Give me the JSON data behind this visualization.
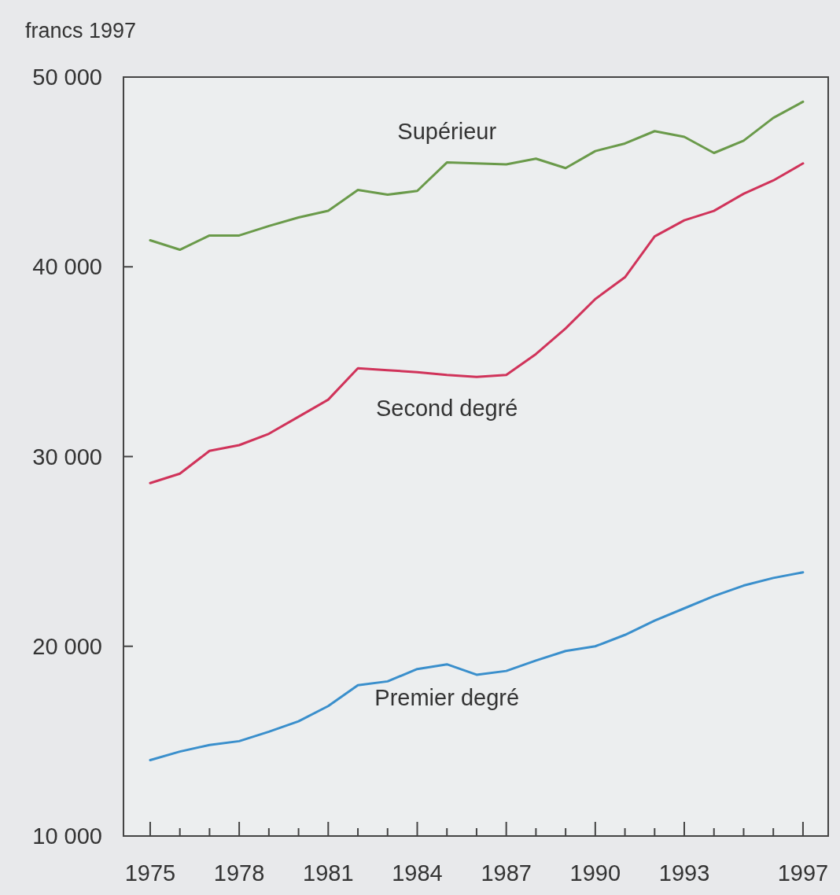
{
  "chart_data": {
    "type": "line",
    "ylabel": "francs 1997",
    "x": [
      1975,
      1976,
      1977,
      1978,
      1979,
      1980,
      1981,
      1982,
      1983,
      1984,
      1985,
      1986,
      1987,
      1988,
      1989,
      1990,
      1991,
      1992,
      1993,
      1994,
      1995,
      1996,
      1997
    ],
    "xlim": [
      1974.1,
      1997.85
    ],
    "xticks": [
      1975,
      {
        "value": 1976,
        "label": null
      },
      {
        "value": 1977,
        "label": null
      },
      1978,
      {
        "value": 1979,
        "label": null
      },
      {
        "value": 1980,
        "label": null
      },
      1981,
      {
        "value": 1982,
        "label": null
      },
      {
        "value": 1983,
        "label": null
      },
      1984,
      {
        "value": 1985,
        "label": null
      },
      {
        "value": 1986,
        "label": null
      },
      1987,
      {
        "value": 1988,
        "label": null
      },
      {
        "value": 1989,
        "label": null
      },
      1990,
      {
        "value": 1991,
        "label": null
      },
      {
        "value": 1992,
        "label": null
      },
      1993,
      {
        "value": 1994,
        "label": null
      },
      {
        "value": 1995,
        "label": null
      },
      {
        "value": 1996,
        "label": null
      },
      1997
    ],
    "ylim": [
      10000,
      50000
    ],
    "yticks": [
      {
        "value": 10000,
        "label": "10 000"
      },
      {
        "value": 20000,
        "label": "20 000"
      },
      {
        "value": 30000,
        "label": "30 000"
      },
      {
        "value": 40000,
        "label": "40 000"
      },
      {
        "value": 50000,
        "label": "50 000"
      }
    ],
    "grid": false,
    "legend": false,
    "marker": "none",
    "line_style": "solid",
    "series": [
      {
        "name": "Supérieur",
        "color": "#6a9a4a",
        "values": [
          41400,
          40900,
          41650,
          41650,
          42150,
          42600,
          42950,
          44050,
          43800,
          44000,
          45500,
          45450,
          45400,
          45700,
          45200,
          46100,
          46500,
          47150,
          46850,
          46000,
          46650,
          47850,
          48700
        ]
      },
      {
        "name": "Second degré",
        "color": "#d0335a",
        "values": [
          28600,
          29100,
          30300,
          30600,
          31200,
          32100,
          33000,
          34650,
          34550,
          34450,
          34300,
          34200,
          34300,
          35400,
          36750,
          38300,
          39450,
          41600,
          42450,
          42950,
          43850,
          44550,
          45450
        ]
      },
      {
        "name": "Premier degré",
        "color": "#3a8fcc",
        "values": [
          14000,
          14450,
          14800,
          15000,
          15500,
          16050,
          16850,
          17950,
          18150,
          18800,
          19050,
          18500,
          18700,
          19250,
          19750,
          20000,
          20600,
          21350,
          22000,
          22650,
          23200,
          23600,
          23900
        ]
      }
    ]
  }
}
